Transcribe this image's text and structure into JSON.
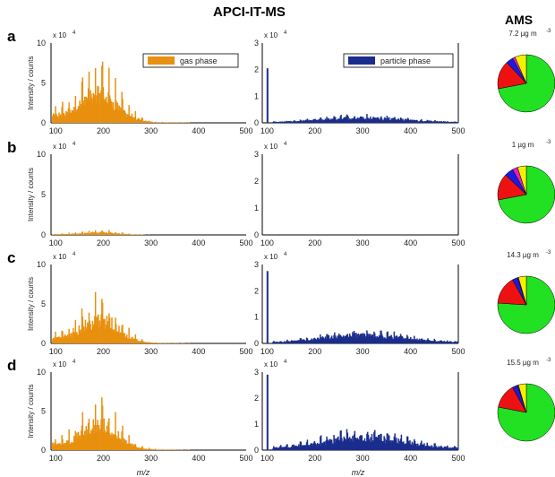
{
  "header": {
    "left": "APCI-IT-MS",
    "right": "AMS"
  },
  "colors": {
    "gas": "#E8900F",
    "particle": "#1A2D8C",
    "pie_green": "#22E022",
    "pie_red": "#EE1111",
    "pie_blue": "#1A1AE0",
    "pie_yellow": "#F5F000",
    "pie_magenta": "#E020C0"
  },
  "chart_data": {
    "type": "bar",
    "x_axis_label": "m/z",
    "y_axis_label": "Intensity / counts",
    "legend": {
      "gas": "gas phase",
      "particle": "particle phase"
    },
    "xlim": [
      90,
      500
    ],
    "xticks": [
      100,
      200,
      300,
      400,
      500
    ],
    "gas_ylim": [
      0,
      10
    ],
    "gas_yticks": [
      0,
      5,
      10
    ],
    "gas_multiplier": "x 10",
    "gas_multiplier_exp": "4",
    "particle_ylim": [
      0,
      3
    ],
    "particle_yticks": [
      0,
      1,
      2,
      3
    ],
    "particle_multiplier": "x 10",
    "particle_multiplier_exp": "4",
    "panels": [
      {
        "letter": "a",
        "ams_total": "7.2 µg m",
        "ams_exp": "-3",
        "gas_scale": 1.0,
        "particle_scale": 0.6,
        "particle_spike": 2.05,
        "ams_fractions": {
          "green": 0.72,
          "red": 0.16,
          "blue": 0.04,
          "magenta": 0.015,
          "yellow": 0.065
        }
      },
      {
        "letter": "b",
        "ams_total": "1 µg m",
        "ams_exp": "-3",
        "gas_scale": 0.08,
        "particle_scale": 0.0,
        "particle_spike": 0.0,
        "ams_fractions": {
          "green": 0.72,
          "red": 0.15,
          "blue": 0.05,
          "magenta": 0.03,
          "yellow": 0.05
        }
      },
      {
        "letter": "c",
        "ams_total": "14.3 µg m",
        "ams_exp": "-3",
        "gas_scale": 0.8,
        "particle_scale": 1.0,
        "particle_spike": 2.75,
        "ams_fractions": {
          "green": 0.76,
          "red": 0.16,
          "blue": 0.03,
          "magenta": 0.005,
          "yellow": 0.045
        }
      },
      {
        "letter": "d",
        "ams_total": "15.5 µg m",
        "ams_exp": "-3",
        "gas_scale": 0.8,
        "particle_scale": 1.55,
        "particle_spike": 2.9,
        "ams_fractions": {
          "green": 0.78,
          "red": 0.14,
          "blue": 0.03,
          "magenta": 0.005,
          "yellow": 0.045
        }
      }
    ]
  }
}
